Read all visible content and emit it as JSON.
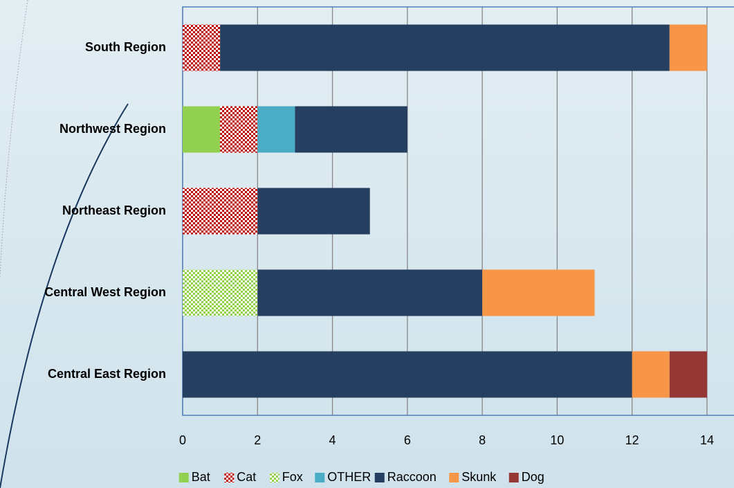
{
  "chart_data": {
    "type": "stacked_barh",
    "categories": [
      "South Region",
      "Northwest Region",
      "Northeast Region",
      "Central West Region",
      "Central East Region"
    ],
    "series": [
      {
        "name": "Bat",
        "color": "#92d050",
        "values": [
          0,
          1,
          0,
          0,
          0
        ]
      },
      {
        "name": "Cat",
        "color": "#c00000",
        "fill_style": "pattern",
        "values": [
          1,
          1,
          2,
          0,
          0
        ]
      },
      {
        "name": "Fox",
        "color": "#92d050",
        "fill_style": "pattern",
        "values": [
          0,
          0,
          0,
          2,
          0
        ]
      },
      {
        "name": "OTHER",
        "color": "#4bacc6",
        "values": [
          0,
          1,
          0,
          0,
          0
        ]
      },
      {
        "name": "Raccoon",
        "color": "#243f60",
        "values": [
          12,
          3,
          3,
          6,
          12
        ]
      },
      {
        "name": "Skunk",
        "color": "#f79646",
        "values": [
          1,
          0,
          0,
          3,
          1
        ]
      },
      {
        "name": "Dog",
        "color": "#953735",
        "values": [
          0,
          0,
          0,
          0,
          1
        ]
      }
    ],
    "xlim": [
      0,
      16
    ],
    "xticks": [
      0,
      2,
      4,
      6,
      8,
      10,
      12,
      14
    ],
    "grid": true,
    "legend": "bottom"
  }
}
